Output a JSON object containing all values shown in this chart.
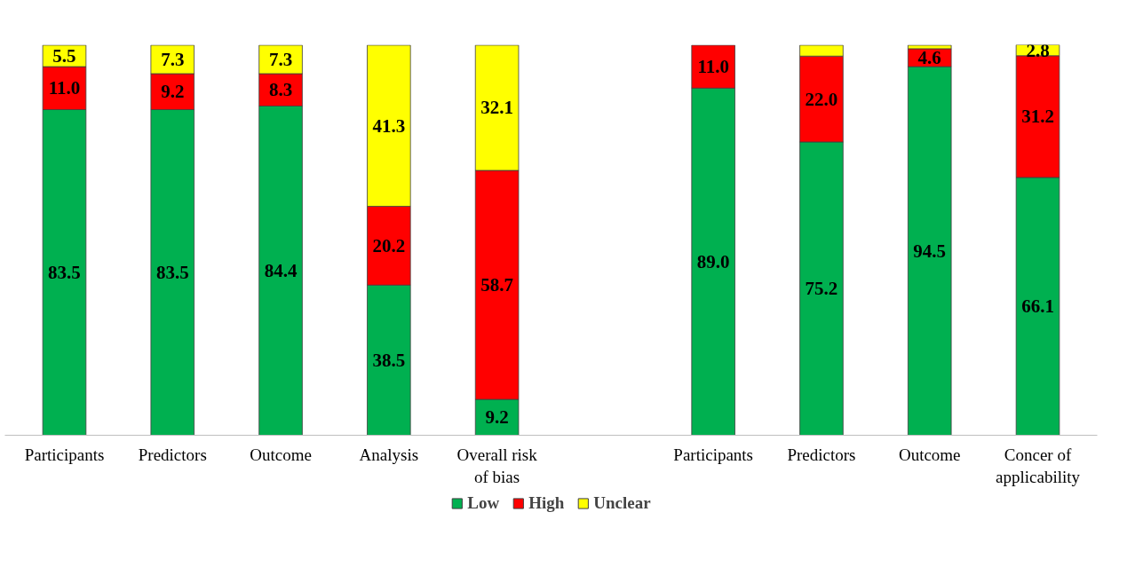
{
  "chart_data": {
    "type": "bar",
    "stacked": true,
    "categories": [
      "Participants",
      "Predictors",
      "Outcome",
      "Analysis",
      "Overall risk of bias",
      null,
      "Participants",
      "Predictors",
      "Outcome",
      "Concer of applicability"
    ],
    "series": [
      {
        "name": "Low",
        "color": "#00b050",
        "values": [
          83.5,
          83.5,
          84.4,
          38.5,
          9.2,
          null,
          89.0,
          75.2,
          94.5,
          66.1
        ],
        "value_labels": [
          "83.5",
          "83.5",
          "84.4",
          "38.5",
          "9.2",
          null,
          "89.0",
          "75.2",
          "94.5",
          "66.1"
        ]
      },
      {
        "name": "High",
        "color": "#ff0000",
        "values": [
          11.0,
          9.2,
          8.3,
          20.2,
          58.7,
          null,
          11.0,
          22.0,
          4.6,
          31.2
        ],
        "value_labels": [
          "11.0",
          "9.2",
          "8.3",
          "20.2",
          "58.7",
          null,
          "11.0",
          "22.0",
          "4.6",
          "31.2"
        ]
      },
      {
        "name": "Unclear",
        "color": "#ffff00",
        "values": [
          5.5,
          7.3,
          7.3,
          41.3,
          32.1,
          null,
          null,
          2.8,
          0.9,
          2.8
        ],
        "value_labels": [
          "5.5",
          "7.3",
          "7.3",
          "41.3",
          "32.1",
          null,
          null,
          null,
          null,
          "2.8"
        ]
      }
    ],
    "legend": "bottom",
    "grid": false
  }
}
